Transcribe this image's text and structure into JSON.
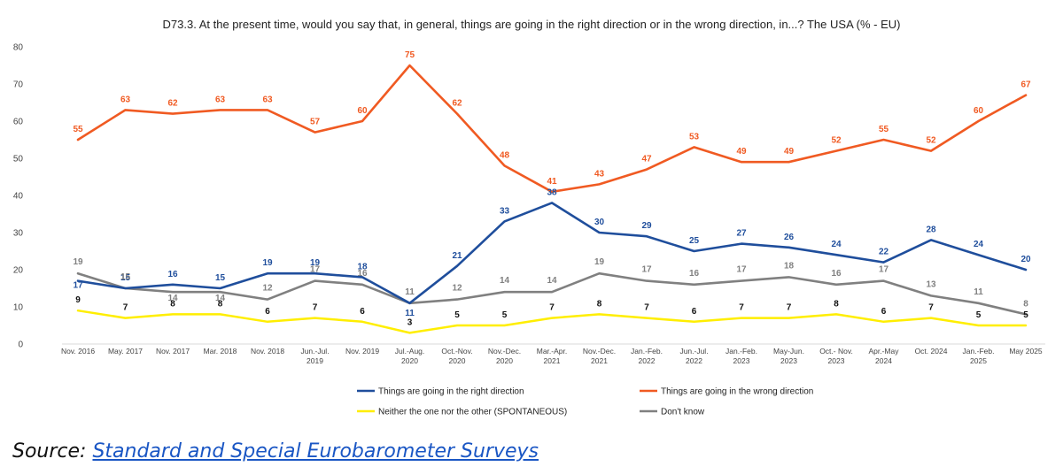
{
  "chart_data": {
    "type": "line",
    "title": "D73.3. At the present time, would you say that, in general, things are going in the right direction or in the wrong direction, in...? The  USA (% - EU)",
    "ylim": [
      0,
      80
    ],
    "yticks": [
      0,
      10,
      20,
      30,
      40,
      50,
      60,
      70,
      80
    ],
    "categories": [
      [
        "Nov. 2016"
      ],
      [
        "May. 2017"
      ],
      [
        "Nov. 2017"
      ],
      [
        "Mar. 2018"
      ],
      [
        "Nov. 2018"
      ],
      [
        "Jun.-Jul.",
        "2019"
      ],
      [
        "Nov. 2019"
      ],
      [
        "Jul.-Aug.",
        "2020"
      ],
      [
        "Oct.-Nov.",
        "2020"
      ],
      [
        "Nov.-Dec.",
        "2020"
      ],
      [
        "Mar.-Apr.",
        "2021"
      ],
      [
        "Nov.-Dec.",
        "2021"
      ],
      [
        "Jan.-Feb.",
        "2022"
      ],
      [
        "Jun.-Jul.",
        "2022"
      ],
      [
        "Jan.-Feb.",
        "2023"
      ],
      [
        "May-Jun.",
        "2023"
      ],
      [
        "Oct.- Nov.",
        "2023"
      ],
      [
        "Apr.-May",
        "2024"
      ],
      [
        "Oct. 2024"
      ],
      [
        "Jan.-Feb.",
        "2025"
      ],
      [
        "May 2025"
      ]
    ],
    "series": [
      {
        "name": "Things are going in the right direction",
        "color": "#1f4e9c",
        "values": [
          17,
          15,
          16,
          15,
          19,
          19,
          18,
          11,
          21,
          33,
          38,
          30,
          29,
          25,
          27,
          26,
          24,
          22,
          28,
          24,
          20
        ]
      },
      {
        "name": "Things are going in the wrong direction",
        "color": "#f05a22",
        "values": [
          55,
          63,
          62,
          63,
          63,
          57,
          60,
          75,
          62,
          48,
          41,
          43,
          47,
          53,
          49,
          49,
          52,
          55,
          52,
          60,
          67
        ]
      },
      {
        "name": "Neither the one nor the other (SPONTANEOUS)",
        "color": "#ffee00",
        "label_color": "#111111",
        "values": [
          9,
          7,
          8,
          8,
          6,
          7,
          6,
          3,
          5,
          5,
          7,
          8,
          7,
          6,
          7,
          7,
          8,
          6,
          7,
          5,
          5
        ]
      },
      {
        "name": "Don't know",
        "color": "#808080",
        "values": [
          19,
          15,
          14,
          14,
          12,
          17,
          16,
          11,
          12,
          14,
          14,
          19,
          17,
          16,
          17,
          18,
          16,
          17,
          13,
          11,
          8
        ]
      }
    ]
  },
  "source": {
    "prefix": "Source: ",
    "link_text": "Standard and Special Eurobarometer Surveys"
  }
}
